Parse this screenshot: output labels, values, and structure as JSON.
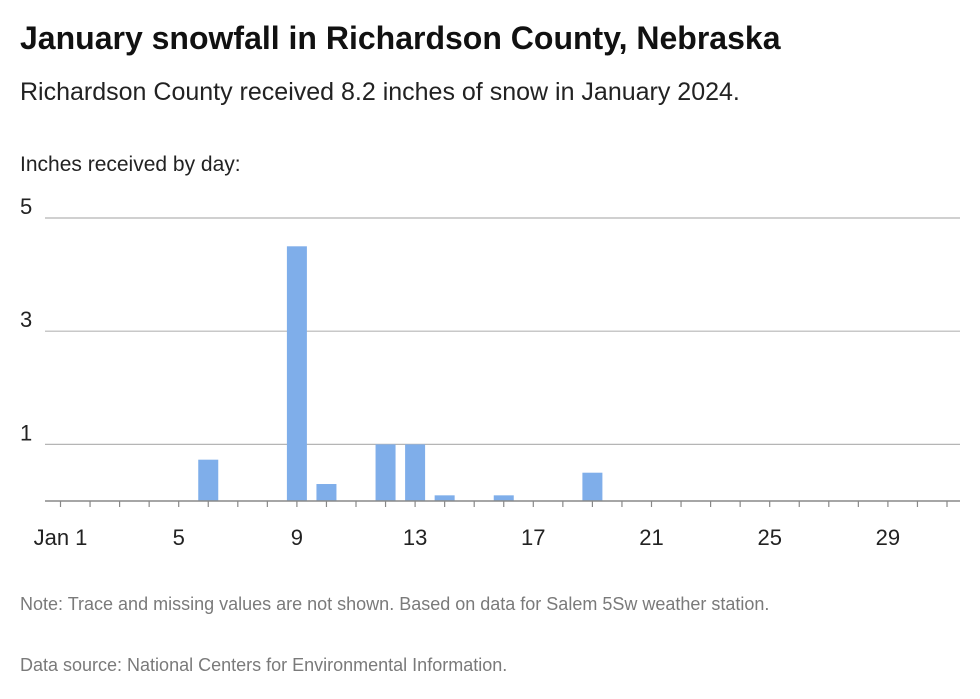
{
  "title": "January snowfall in Richardson County, Nebraska",
  "subtitle": "Richardson County received 8.2 inches of snow in January 2024.",
  "unit_label": "Inches received by day:",
  "note": "Note: Trace and missing values are not shown. Based on data for Salem 5Sw weather station.",
  "source": "Data source: National Centers for Environmental Information.",
  "colors": {
    "bar": "#7faeea",
    "grid": "#b5b5b5",
    "axis": "#888888"
  },
  "chart_data": {
    "type": "bar",
    "x": [
      1,
      2,
      3,
      4,
      5,
      6,
      7,
      8,
      9,
      10,
      11,
      12,
      13,
      14,
      15,
      16,
      17,
      18,
      19,
      20,
      21,
      22,
      23,
      24,
      25,
      26,
      27,
      28,
      29,
      30,
      31
    ],
    "values": [
      0,
      0,
      0,
      0,
      0,
      0.73,
      0,
      0,
      4.5,
      0.3,
      0,
      1.0,
      1.0,
      0.1,
      0,
      0.1,
      0,
      0,
      0.5,
      0,
      0,
      0,
      0,
      0,
      0,
      0,
      0,
      0,
      0,
      0,
      0
    ],
    "x_tick_labels": [
      "Jan 1",
      "5",
      "9",
      "13",
      "17",
      "21",
      "25",
      "29"
    ],
    "x_tick_days": [
      1,
      5,
      9,
      13,
      17,
      21,
      25,
      29
    ],
    "y_ticks": [
      1,
      3,
      5
    ],
    "ylim": [
      0,
      5
    ],
    "grid": true,
    "legend": "none"
  }
}
